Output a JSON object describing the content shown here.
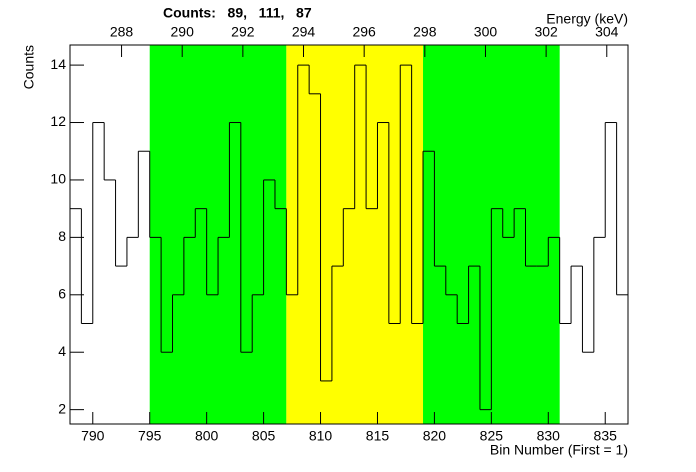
{
  "chart_data": {
    "type": "histogram",
    "title": "Counts:   89,   111,   87",
    "xlabel": "Bin Number (First = 1)",
    "ylabel": "Counts",
    "x2label": "Energy (keV)",
    "bins": [
      788,
      789,
      790,
      791,
      792,
      793,
      794,
      795,
      796,
      797,
      798,
      799,
      800,
      801,
      802,
      803,
      804,
      805,
      806,
      807,
      808,
      809,
      810,
      811,
      812,
      813,
      814,
      815,
      816,
      817,
      818,
      819,
      820,
      821,
      822,
      823,
      824,
      825,
      826,
      827,
      828,
      829,
      830,
      831,
      832,
      833,
      834,
      835,
      836,
      837
    ],
    "values": [
      9,
      5,
      12,
      10,
      7,
      8,
      11,
      8,
      4,
      6,
      8,
      9,
      6,
      8,
      12,
      4,
      6,
      10,
      9,
      6,
      14,
      13,
      3,
      7,
      9,
      14,
      9,
      12,
      5,
      14,
      5,
      11,
      7,
      6,
      5,
      7,
      2,
      9,
      8,
      9,
      7,
      7,
      8,
      5,
      7,
      4,
      8,
      12,
      6
    ],
    "color": "#000000",
    "bands": [
      {
        "range": [
          795,
          807
        ],
        "color": "#00ff00"
      },
      {
        "range": [
          807,
          819
        ],
        "color": "#ffff00"
      },
      {
        "range": [
          819,
          831
        ],
        "color": "#00ff00"
      }
    ],
    "xlim": [
      788,
      837
    ],
    "xticks": [
      790,
      795,
      800,
      805,
      810,
      815,
      820,
      825,
      830,
      835
    ],
    "ylim": [
      1.5,
      14.7
    ],
    "yticks": [
      2,
      4,
      6,
      8,
      10,
      12,
      14
    ],
    "x2lim": [
      286.3,
      304.7
    ],
    "x2ticks": [
      288,
      290,
      292,
      294,
      296,
      298,
      300,
      302,
      304
    ]
  }
}
